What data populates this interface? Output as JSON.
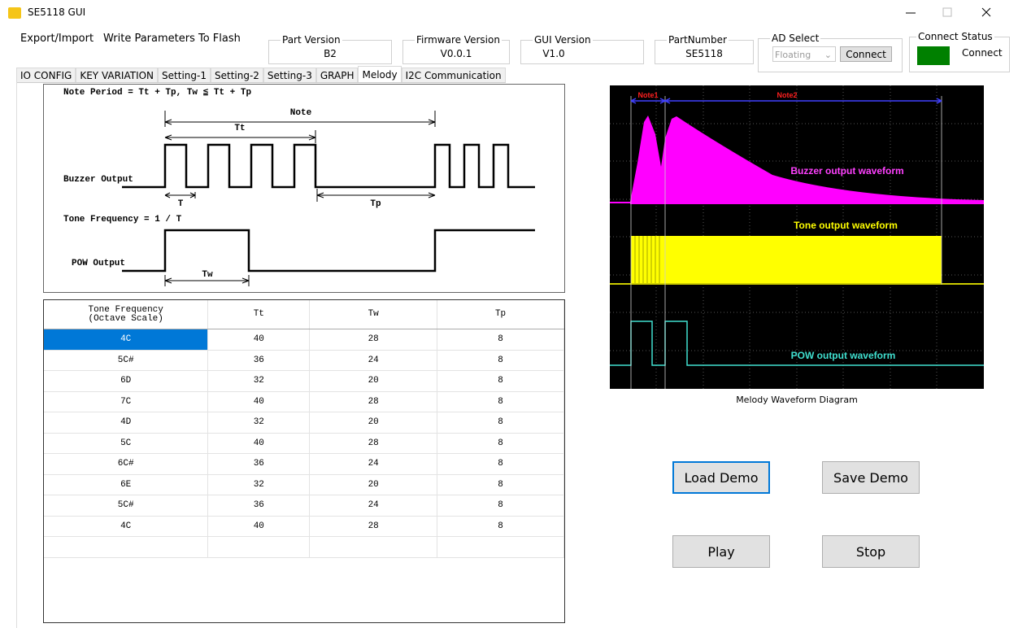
{
  "window": {
    "title": "SE5118 GUI"
  },
  "menu": [
    "Export/Import",
    "Write Parameters To Flash"
  ],
  "info": [
    {
      "label": "Part Version",
      "value": "B2"
    },
    {
      "label": "Firmware Version",
      "value": "V0.0.1"
    },
    {
      "label": "GUI Version",
      "value": "V1.0"
    },
    {
      "label": "PartNumber",
      "value": "SE5118"
    }
  ],
  "ad_select": {
    "label": "AD Select",
    "value": "Floating",
    "button": "Connect"
  },
  "connect_status": {
    "label": "Connect Status",
    "value": "Connect"
  },
  "tabs": [
    "IO CONFIG",
    "KEY VARIATION",
    "Setting-1",
    "Setting-2",
    "Setting-3",
    "GRAPH",
    "Melody",
    "I2C Communication"
  ],
  "diagram": {
    "formula": "Note Period = Tt + Tp, Tw ≦ Tt + Tp",
    "note": "Note",
    "tt": "Tt",
    "buzzer": "Buzzer Output",
    "t": "T",
    "tp": "Tp",
    "tone_formula": "Tone Frequency = 1 / T",
    "pow": "POW Output",
    "tw": "Tw"
  },
  "table": {
    "headers": [
      "Tone Frequency\n(Octave Scale)",
      "Tt",
      "Tw",
      "Tp"
    ],
    "rows": [
      [
        "4C",
        40,
        28,
        8
      ],
      [
        "5C#",
        36,
        24,
        8
      ],
      [
        "6D",
        32,
        20,
        8
      ],
      [
        "7C",
        40,
        28,
        8
      ],
      [
        "4D",
        32,
        20,
        8
      ],
      [
        "5C",
        40,
        28,
        8
      ],
      [
        "6C#",
        36,
        24,
        8
      ],
      [
        "6E",
        32,
        20,
        8
      ],
      [
        "5C#",
        36,
        24,
        8
      ],
      [
        "4C",
        40,
        28,
        8
      ]
    ]
  },
  "scope": {
    "note1": "Note1",
    "note2": "Note2",
    "buzzer": "Buzzer output waveform",
    "tone": "Tone output waveform",
    "pow": "POW output waveform",
    "caption": "Melody Waveform Diagram"
  },
  "buttons": [
    "Load Demo",
    "Save Demo",
    "Play",
    "Stop"
  ]
}
